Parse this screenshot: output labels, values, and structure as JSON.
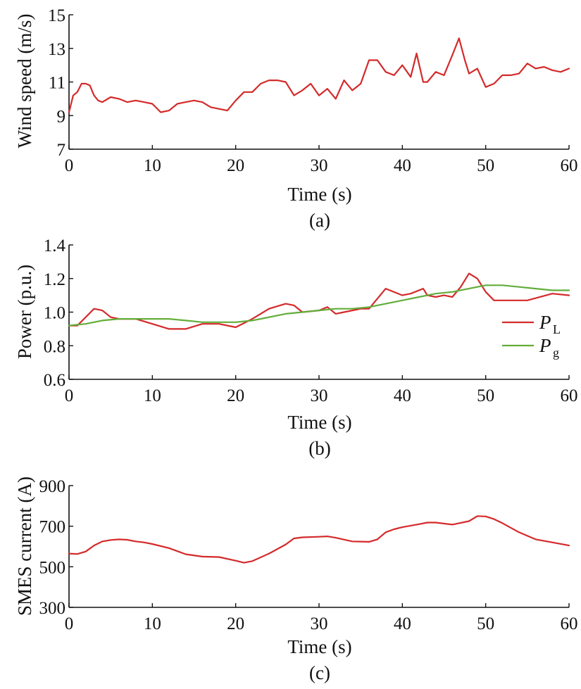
{
  "chart_data": [
    {
      "type": "line",
      "panel_label": "(a)",
      "xlabel": "Time (s)",
      "ylabel": "Wind speed (m/s)",
      "xlim": [
        0,
        60
      ],
      "ylim": [
        7,
        15
      ],
      "xticks": [
        0,
        10,
        20,
        30,
        40,
        50,
        60
      ],
      "yticks": [
        7,
        9,
        11,
        13,
        15
      ],
      "grid": false,
      "series": [
        {
          "color": "#d42a2a",
          "x": [
            0,
            0.5,
            1,
            1.5,
            2,
            2.5,
            3,
            3.5,
            4,
            5,
            6,
            7,
            8,
            9,
            10,
            11,
            12,
            13,
            14,
            15,
            16,
            17,
            18,
            19,
            20,
            21,
            22,
            23,
            24,
            25,
            26,
            27,
            28,
            29,
            30,
            31,
            32,
            33,
            34,
            35,
            36,
            37,
            38,
            39,
            40,
            41,
            41.7,
            42.5,
            43,
            44,
            45,
            46,
            46.8,
            47.5,
            48,
            49,
            50,
            51,
            52,
            53,
            54,
            55,
            56,
            57,
            58,
            59,
            60
          ],
          "y": [
            9.2,
            10.2,
            10.4,
            10.9,
            10.9,
            10.8,
            10.2,
            9.9,
            9.8,
            10.1,
            10.0,
            9.8,
            9.9,
            9.8,
            9.7,
            9.2,
            9.3,
            9.7,
            9.8,
            9.9,
            9.8,
            9.5,
            9.4,
            9.3,
            9.9,
            10.4,
            10.4,
            10.9,
            11.1,
            11.1,
            11.0,
            10.2,
            10.5,
            10.9,
            10.2,
            10.6,
            10.0,
            11.1,
            10.5,
            10.9,
            12.3,
            12.3,
            11.6,
            11.4,
            12.0,
            11.3,
            12.7,
            11.0,
            11.0,
            11.6,
            11.4,
            12.6,
            13.6,
            12.3,
            11.5,
            11.8,
            10.7,
            10.9,
            11.4,
            11.4,
            11.5,
            12.1,
            11.8,
            11.9,
            11.7,
            11.6,
            11.8
          ]
        }
      ]
    },
    {
      "type": "line",
      "panel_label": "(b)",
      "xlabel": "Time (s)",
      "ylabel": "Power (p.u.)",
      "xlim": [
        0,
        60
      ],
      "ylim": [
        0.6,
        1.4
      ],
      "xticks": [
        0,
        10,
        20,
        30,
        40,
        50,
        60
      ],
      "yticks": [
        0.6,
        0.8,
        1.0,
        1.2,
        1.4
      ],
      "ytick_labels": [
        "0.6",
        "0.8",
        "1.0",
        "1.2",
        "1.4"
      ],
      "grid": false,
      "legend": "right",
      "series": [
        {
          "name": "P",
          "sub": "L",
          "color": "#d42a2a",
          "x": [
            0,
            1,
            2,
            3,
            4,
            5,
            6,
            8,
            10,
            12,
            14,
            16,
            18,
            20,
            22,
            24,
            26,
            27,
            28,
            30,
            31,
            32,
            33,
            35,
            36,
            38,
            40,
            41,
            42.5,
            43,
            44,
            45,
            46,
            47,
            48,
            49,
            50,
            51,
            52,
            55,
            58,
            60
          ],
          "y": [
            0.92,
            0.92,
            0.97,
            1.02,
            1.01,
            0.97,
            0.96,
            0.96,
            0.93,
            0.9,
            0.9,
            0.93,
            0.93,
            0.91,
            0.96,
            1.02,
            1.05,
            1.04,
            1.0,
            1.01,
            1.03,
            0.99,
            1.0,
            1.02,
            1.02,
            1.14,
            1.1,
            1.11,
            1.14,
            1.1,
            1.09,
            1.1,
            1.09,
            1.15,
            1.23,
            1.2,
            1.12,
            1.07,
            1.07,
            1.07,
            1.11,
            1.1
          ]
        },
        {
          "name": "P",
          "sub": "g",
          "color": "#62ad3a",
          "x": [
            0,
            2,
            4,
            6,
            8,
            10,
            12,
            14,
            16,
            18,
            20,
            22,
            24,
            26,
            28,
            30,
            32,
            34,
            36,
            38,
            40,
            42,
            44,
            46,
            48,
            50,
            52,
            54,
            56,
            58,
            60
          ],
          "y": [
            0.92,
            0.93,
            0.95,
            0.96,
            0.96,
            0.96,
            0.96,
            0.95,
            0.94,
            0.94,
            0.94,
            0.95,
            0.97,
            0.99,
            1.0,
            1.01,
            1.02,
            1.02,
            1.03,
            1.05,
            1.07,
            1.09,
            1.11,
            1.12,
            1.14,
            1.16,
            1.16,
            1.15,
            1.14,
            1.13,
            1.13
          ]
        }
      ]
    },
    {
      "type": "line",
      "panel_label": "(c)",
      "xlabel": "Time (s)",
      "ylabel": "SMES current (A)",
      "xlim": [
        0,
        60
      ],
      "ylim": [
        300,
        900
      ],
      "xticks": [
        0,
        10,
        20,
        30,
        40,
        50,
        60
      ],
      "yticks": [
        300,
        500,
        700,
        900
      ],
      "grid": false,
      "series": [
        {
          "color": "#d42a2a",
          "x": [
            0,
            1,
            2,
            3,
            4,
            5,
            6,
            7,
            8,
            9,
            10,
            12,
            14,
            16,
            18,
            20,
            21,
            22,
            24,
            26,
            27,
            28,
            30,
            31,
            32,
            34,
            36,
            37,
            38,
            39,
            40,
            42,
            43,
            44,
            46,
            48,
            49,
            50,
            51,
            52,
            54,
            56,
            58,
            60
          ],
          "y": [
            565,
            563,
            575,
            605,
            625,
            632,
            635,
            633,
            625,
            620,
            612,
            592,
            562,
            550,
            548,
            530,
            520,
            528,
            565,
            610,
            640,
            645,
            648,
            650,
            643,
            625,
            623,
            635,
            670,
            685,
            695,
            710,
            718,
            718,
            708,
            725,
            750,
            748,
            735,
            715,
            670,
            635,
            620,
            605
          ]
        }
      ]
    }
  ]
}
